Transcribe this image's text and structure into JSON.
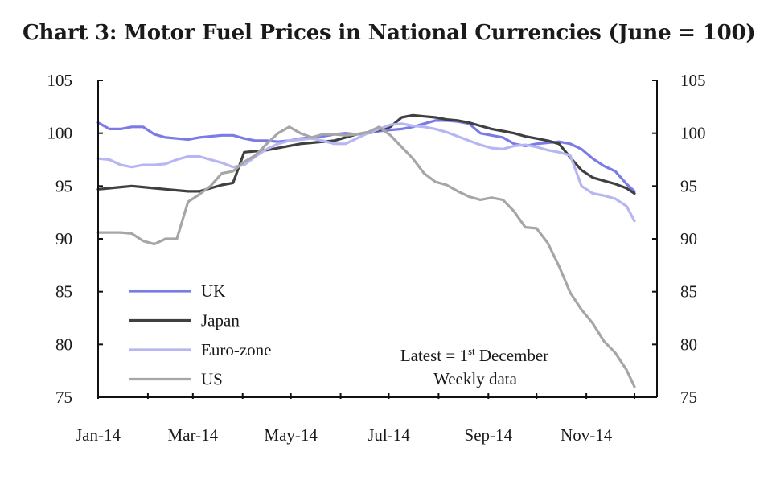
{
  "title": "Chart 3: Motor Fuel Prices in National Currencies (June = 100)",
  "chart_data": {
    "type": "line",
    "title": "Chart 3: Motor Fuel Prices in National Currencies (June = 100)",
    "xlabel": "",
    "ylabel": "",
    "ylim": [
      75,
      105
    ],
    "y_ticks": [
      75,
      80,
      85,
      90,
      95,
      100,
      105
    ],
    "y2_ticks": [
      75,
      80,
      85,
      90,
      95,
      100,
      105
    ],
    "x_ticks": [
      "Jan-14",
      "Mar-14",
      "May-14",
      "Jul-14",
      "Sep-14",
      "Nov-14"
    ],
    "x_tick_dates": [
      "2014-01-01",
      "2014-03-01",
      "2014-05-01",
      "2014-07-01",
      "2014-09-01",
      "2014-11-01"
    ],
    "xlim": [
      "2014-01-01",
      "2014-12-15"
    ],
    "grid": false,
    "legend_position": "bottom-left",
    "annotation": {
      "line1_prefix": "Latest = 1",
      "line1_superscript": "st",
      "line1_suffix": " December",
      "line2": "Weekly data"
    },
    "series": [
      {
        "name": "UK",
        "color": "#7b7be6",
        "points": [
          [
            "2014-01-01",
            101.0
          ],
          [
            "2014-01-08",
            100.4
          ],
          [
            "2014-01-15",
            100.4
          ],
          [
            "2014-01-22",
            100.6
          ],
          [
            "2014-01-29",
            100.6
          ],
          [
            "2014-02-05",
            99.9
          ],
          [
            "2014-02-12",
            99.6
          ],
          [
            "2014-02-19",
            99.5
          ],
          [
            "2014-02-26",
            99.4
          ],
          [
            "2014-03-05",
            99.6
          ],
          [
            "2014-03-12",
            99.7
          ],
          [
            "2014-03-19",
            99.8
          ],
          [
            "2014-03-26",
            99.8
          ],
          [
            "2014-04-02",
            99.5
          ],
          [
            "2014-04-09",
            99.3
          ],
          [
            "2014-04-16",
            99.3
          ],
          [
            "2014-04-23",
            99.2
          ],
          [
            "2014-04-30",
            99.3
          ],
          [
            "2014-05-07",
            99.5
          ],
          [
            "2014-05-14",
            99.6
          ],
          [
            "2014-05-21",
            99.7
          ],
          [
            "2014-05-28",
            99.9
          ],
          [
            "2014-06-04",
            100.0
          ],
          [
            "2014-06-11",
            99.9
          ],
          [
            "2014-06-18",
            100.0
          ],
          [
            "2014-06-25",
            100.2
          ],
          [
            "2014-07-02",
            100.3
          ],
          [
            "2014-07-09",
            100.4
          ],
          [
            "2014-07-16",
            100.6
          ],
          [
            "2014-07-23",
            100.9
          ],
          [
            "2014-07-30",
            101.2
          ],
          [
            "2014-08-06",
            101.2
          ],
          [
            "2014-08-13",
            101.1
          ],
          [
            "2014-08-20",
            100.9
          ],
          [
            "2014-08-27",
            100.0
          ],
          [
            "2014-09-03",
            99.8
          ],
          [
            "2014-09-10",
            99.6
          ],
          [
            "2014-09-17",
            99.0
          ],
          [
            "2014-09-24",
            98.8
          ],
          [
            "2014-10-01",
            99.0
          ],
          [
            "2014-10-08",
            99.1
          ],
          [
            "2014-10-15",
            99.2
          ],
          [
            "2014-10-22",
            99.0
          ],
          [
            "2014-10-29",
            98.5
          ],
          [
            "2014-11-05",
            97.6
          ],
          [
            "2014-11-12",
            96.9
          ],
          [
            "2014-11-19",
            96.4
          ],
          [
            "2014-11-26",
            95.2
          ],
          [
            "2014-12-01",
            94.5
          ]
        ]
      },
      {
        "name": "Japan",
        "color": "#404040",
        "points": [
          [
            "2014-01-01",
            94.7
          ],
          [
            "2014-01-08",
            94.8
          ],
          [
            "2014-01-15",
            94.9
          ],
          [
            "2014-01-22",
            95.0
          ],
          [
            "2014-01-29",
            94.9
          ],
          [
            "2014-02-05",
            94.8
          ],
          [
            "2014-02-12",
            94.7
          ],
          [
            "2014-02-19",
            94.6
          ],
          [
            "2014-02-26",
            94.5
          ],
          [
            "2014-03-05",
            94.5
          ],
          [
            "2014-03-12",
            94.8
          ],
          [
            "2014-03-19",
            95.1
          ],
          [
            "2014-03-26",
            95.3
          ],
          [
            "2014-04-02",
            98.2
          ],
          [
            "2014-04-09",
            98.3
          ],
          [
            "2014-04-16",
            98.4
          ],
          [
            "2014-04-23",
            98.6
          ],
          [
            "2014-04-30",
            98.8
          ],
          [
            "2014-05-07",
            99.0
          ],
          [
            "2014-05-14",
            99.1
          ],
          [
            "2014-05-21",
            99.2
          ],
          [
            "2014-05-28",
            99.3
          ],
          [
            "2014-06-04",
            99.6
          ],
          [
            "2014-06-11",
            99.9
          ],
          [
            "2014-06-18",
            100.1
          ],
          [
            "2014-06-25",
            100.3
          ],
          [
            "2014-07-02",
            100.6
          ],
          [
            "2014-07-09",
            101.5
          ],
          [
            "2014-07-16",
            101.7
          ],
          [
            "2014-07-23",
            101.6
          ],
          [
            "2014-07-30",
            101.5
          ],
          [
            "2014-08-06",
            101.3
          ],
          [
            "2014-08-13",
            101.2
          ],
          [
            "2014-08-20",
            101.0
          ],
          [
            "2014-08-27",
            100.7
          ],
          [
            "2014-09-03",
            100.4
          ],
          [
            "2014-09-10",
            100.2
          ],
          [
            "2014-09-17",
            100.0
          ],
          [
            "2014-09-24",
            99.7
          ],
          [
            "2014-10-01",
            99.5
          ],
          [
            "2014-10-08",
            99.3
          ],
          [
            "2014-10-15",
            99.0
          ],
          [
            "2014-10-22",
            97.7
          ],
          [
            "2014-10-29",
            96.5
          ],
          [
            "2014-11-05",
            95.8
          ],
          [
            "2014-11-12",
            95.5
          ],
          [
            "2014-11-19",
            95.2
          ],
          [
            "2014-11-26",
            94.8
          ],
          [
            "2014-12-01",
            94.3
          ]
        ]
      },
      {
        "name": "Euro-zone",
        "color": "#b6b6f2",
        "points": [
          [
            "2014-01-01",
            97.6
          ],
          [
            "2014-01-08",
            97.5
          ],
          [
            "2014-01-15",
            97.0
          ],
          [
            "2014-01-22",
            96.8
          ],
          [
            "2014-01-29",
            97.0
          ],
          [
            "2014-02-05",
            97.0
          ],
          [
            "2014-02-12",
            97.1
          ],
          [
            "2014-02-19",
            97.5
          ],
          [
            "2014-02-26",
            97.8
          ],
          [
            "2014-03-05",
            97.8
          ],
          [
            "2014-03-12",
            97.5
          ],
          [
            "2014-03-19",
            97.2
          ],
          [
            "2014-03-26",
            96.8
          ],
          [
            "2014-04-02",
            97.0
          ],
          [
            "2014-04-09",
            97.8
          ],
          [
            "2014-04-16",
            98.5
          ],
          [
            "2014-04-23",
            99.0
          ],
          [
            "2014-04-30",
            99.3
          ],
          [
            "2014-05-07",
            99.4
          ],
          [
            "2014-05-14",
            99.5
          ],
          [
            "2014-05-21",
            99.3
          ],
          [
            "2014-05-28",
            99.0
          ],
          [
            "2014-06-04",
            99.0
          ],
          [
            "2014-06-11",
            99.5
          ],
          [
            "2014-06-18",
            100.0
          ],
          [
            "2014-06-25",
            100.4
          ],
          [
            "2014-07-02",
            100.8
          ],
          [
            "2014-07-09",
            100.9
          ],
          [
            "2014-07-16",
            100.7
          ],
          [
            "2014-07-23",
            100.6
          ],
          [
            "2014-07-30",
            100.4
          ],
          [
            "2014-08-06",
            100.1
          ],
          [
            "2014-08-13",
            99.7
          ],
          [
            "2014-08-20",
            99.3
          ],
          [
            "2014-08-27",
            98.9
          ],
          [
            "2014-09-03",
            98.6
          ],
          [
            "2014-09-10",
            98.5
          ],
          [
            "2014-09-17",
            98.8
          ],
          [
            "2014-09-24",
            98.9
          ],
          [
            "2014-10-01",
            98.7
          ],
          [
            "2014-10-08",
            98.4
          ],
          [
            "2014-10-15",
            98.2
          ],
          [
            "2014-10-22",
            97.9
          ],
          [
            "2014-10-29",
            95.0
          ],
          [
            "2014-11-05",
            94.3
          ],
          [
            "2014-11-12",
            94.1
          ],
          [
            "2014-11-19",
            93.8
          ],
          [
            "2014-11-26",
            93.1
          ],
          [
            "2014-12-01",
            91.7
          ]
        ]
      },
      {
        "name": "US",
        "color": "#a6a6a6",
        "points": [
          [
            "2014-01-01",
            90.6
          ],
          [
            "2014-01-08",
            90.6
          ],
          [
            "2014-01-15",
            90.6
          ],
          [
            "2014-01-22",
            90.5
          ],
          [
            "2014-01-29",
            89.8
          ],
          [
            "2014-02-05",
            89.5
          ],
          [
            "2014-02-12",
            90.0
          ],
          [
            "2014-02-19",
            90.0
          ],
          [
            "2014-02-26",
            93.5
          ],
          [
            "2014-03-05",
            94.2
          ],
          [
            "2014-03-12",
            95.0
          ],
          [
            "2014-03-19",
            96.2
          ],
          [
            "2014-03-26",
            96.4
          ],
          [
            "2014-04-02",
            97.3
          ],
          [
            "2014-04-09",
            97.9
          ],
          [
            "2014-04-16",
            99.0
          ],
          [
            "2014-04-23",
            100.0
          ],
          [
            "2014-04-30",
            100.6
          ],
          [
            "2014-05-07",
            100.0
          ],
          [
            "2014-05-14",
            99.6
          ],
          [
            "2014-05-21",
            99.9
          ],
          [
            "2014-05-28",
            99.9
          ],
          [
            "2014-06-04",
            99.8
          ],
          [
            "2014-06-11",
            99.9
          ],
          [
            "2014-06-18",
            100.1
          ],
          [
            "2014-06-25",
            100.6
          ],
          [
            "2014-07-02",
            99.8
          ],
          [
            "2014-07-09",
            98.7
          ],
          [
            "2014-07-16",
            97.6
          ],
          [
            "2014-07-23",
            96.2
          ],
          [
            "2014-07-30",
            95.4
          ],
          [
            "2014-08-06",
            95.1
          ],
          [
            "2014-08-13",
            94.5
          ],
          [
            "2014-08-20",
            94.0
          ],
          [
            "2014-08-27",
            93.7
          ],
          [
            "2014-09-03",
            93.9
          ],
          [
            "2014-09-10",
            93.7
          ],
          [
            "2014-09-17",
            92.6
          ],
          [
            "2014-09-24",
            91.1
          ],
          [
            "2014-10-01",
            91.0
          ],
          [
            "2014-10-08",
            89.6
          ],
          [
            "2014-10-15",
            87.4
          ],
          [
            "2014-10-22",
            84.9
          ],
          [
            "2014-10-29",
            83.3
          ],
          [
            "2014-11-05",
            82.0
          ],
          [
            "2014-11-12",
            80.3
          ],
          [
            "2014-11-19",
            79.2
          ],
          [
            "2014-11-26",
            77.6
          ],
          [
            "2014-12-01",
            76.0
          ]
        ]
      }
    ]
  }
}
